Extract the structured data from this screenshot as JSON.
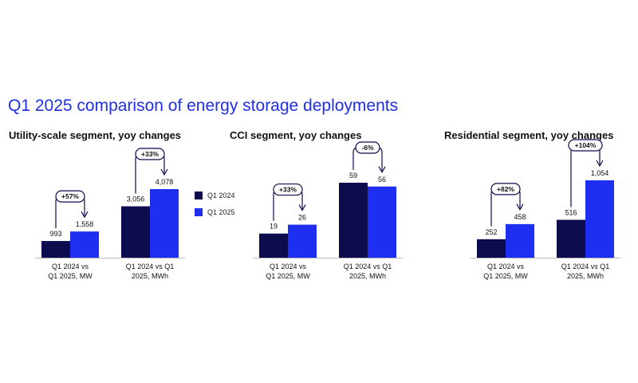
{
  "title": "Q1 2025 comparison of energy storage deployments",
  "legend": [
    {
      "label": "Q1 2024",
      "color": "#0c0c4e"
    },
    {
      "label": "Q1 2025",
      "color": "#1f2ff2"
    }
  ],
  "colors": {
    "title": "#1f2fe6",
    "q1_2024": "#0c0c4e",
    "q1_2025": "#1f2ff2",
    "arrow": "#0c0c4e"
  },
  "chart_data": [
    {
      "type": "bar",
      "title": "Utility-scale segment, yoy changes",
      "groups": [
        {
          "label_lines": [
            "Q1 2024 vs",
            "Q1 2025, MW"
          ],
          "values": [
            993,
            1558
          ],
          "labels": [
            "993",
            "1,558"
          ],
          "change": "+57%"
        },
        {
          "label_lines": [
            "Q1 2024 vs Q1",
            "2025, MWh"
          ],
          "values": [
            3056,
            4078
          ],
          "labels": [
            "3,056",
            "4,078"
          ],
          "change": "+33%"
        }
      ],
      "series": [
        "Q1 2024",
        "Q1 2025"
      ]
    },
    {
      "type": "bar",
      "title": "CCI segment, yoy changes",
      "groups": [
        {
          "label_lines": [
            "Q1 2024 vs",
            "Q1 2025, MW"
          ],
          "values": [
            19,
            26
          ],
          "labels": [
            "19",
            "26"
          ],
          "change": "+33%"
        },
        {
          "label_lines": [
            "Q1 2024 vs Q1",
            "2025, MWh"
          ],
          "values": [
            59,
            56
          ],
          "labels": [
            "59",
            "56"
          ],
          "change": "-6%"
        }
      ],
      "series": [
        "Q1 2024",
        "Q1 2025"
      ]
    },
    {
      "type": "bar",
      "title": "Residential segment, yoy changes",
      "groups": [
        {
          "label_lines": [
            "Q1 2024 vs",
            "Q1 2025, MW"
          ],
          "values": [
            252,
            458
          ],
          "labels": [
            "252",
            "458"
          ],
          "change": "+82%"
        },
        {
          "label_lines": [
            "Q1 2024 vs Q1",
            "2025, MWh"
          ],
          "values": [
            516,
            1054
          ],
          "labels": [
            "516",
            "1,054"
          ],
          "change": "+104%"
        }
      ],
      "series": [
        "Q1 2024",
        "Q1 2025"
      ]
    }
  ]
}
